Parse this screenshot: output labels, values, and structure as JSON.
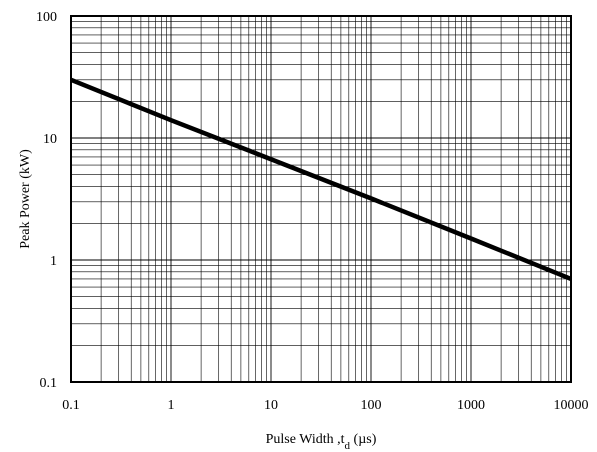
{
  "chart_data": {
    "type": "line",
    "x_scale": "log",
    "y_scale": "log",
    "xlim": [
      0.1,
      10000
    ],
    "ylim": [
      0.1,
      100
    ],
    "grid": true,
    "legend": "none",
    "x_ticks": [
      "0.1",
      "1",
      "10",
      "100",
      "1000",
      "10000"
    ],
    "y_ticks": [
      "0.1",
      "1",
      "10",
      "100"
    ],
    "xlabel": {
      "main": "Pulse Width ,t",
      "sub": "d",
      "unit": " (µs)"
    },
    "ylabel": "Peak Power  (kW)",
    "series": [
      {
        "color": "#000000",
        "x": [
          0.1,
          1,
          10,
          100,
          1000,
          10000
        ],
        "y": [
          30,
          14,
          6.7,
          3.2,
          1.5,
          0.7
        ]
      }
    ]
  }
}
